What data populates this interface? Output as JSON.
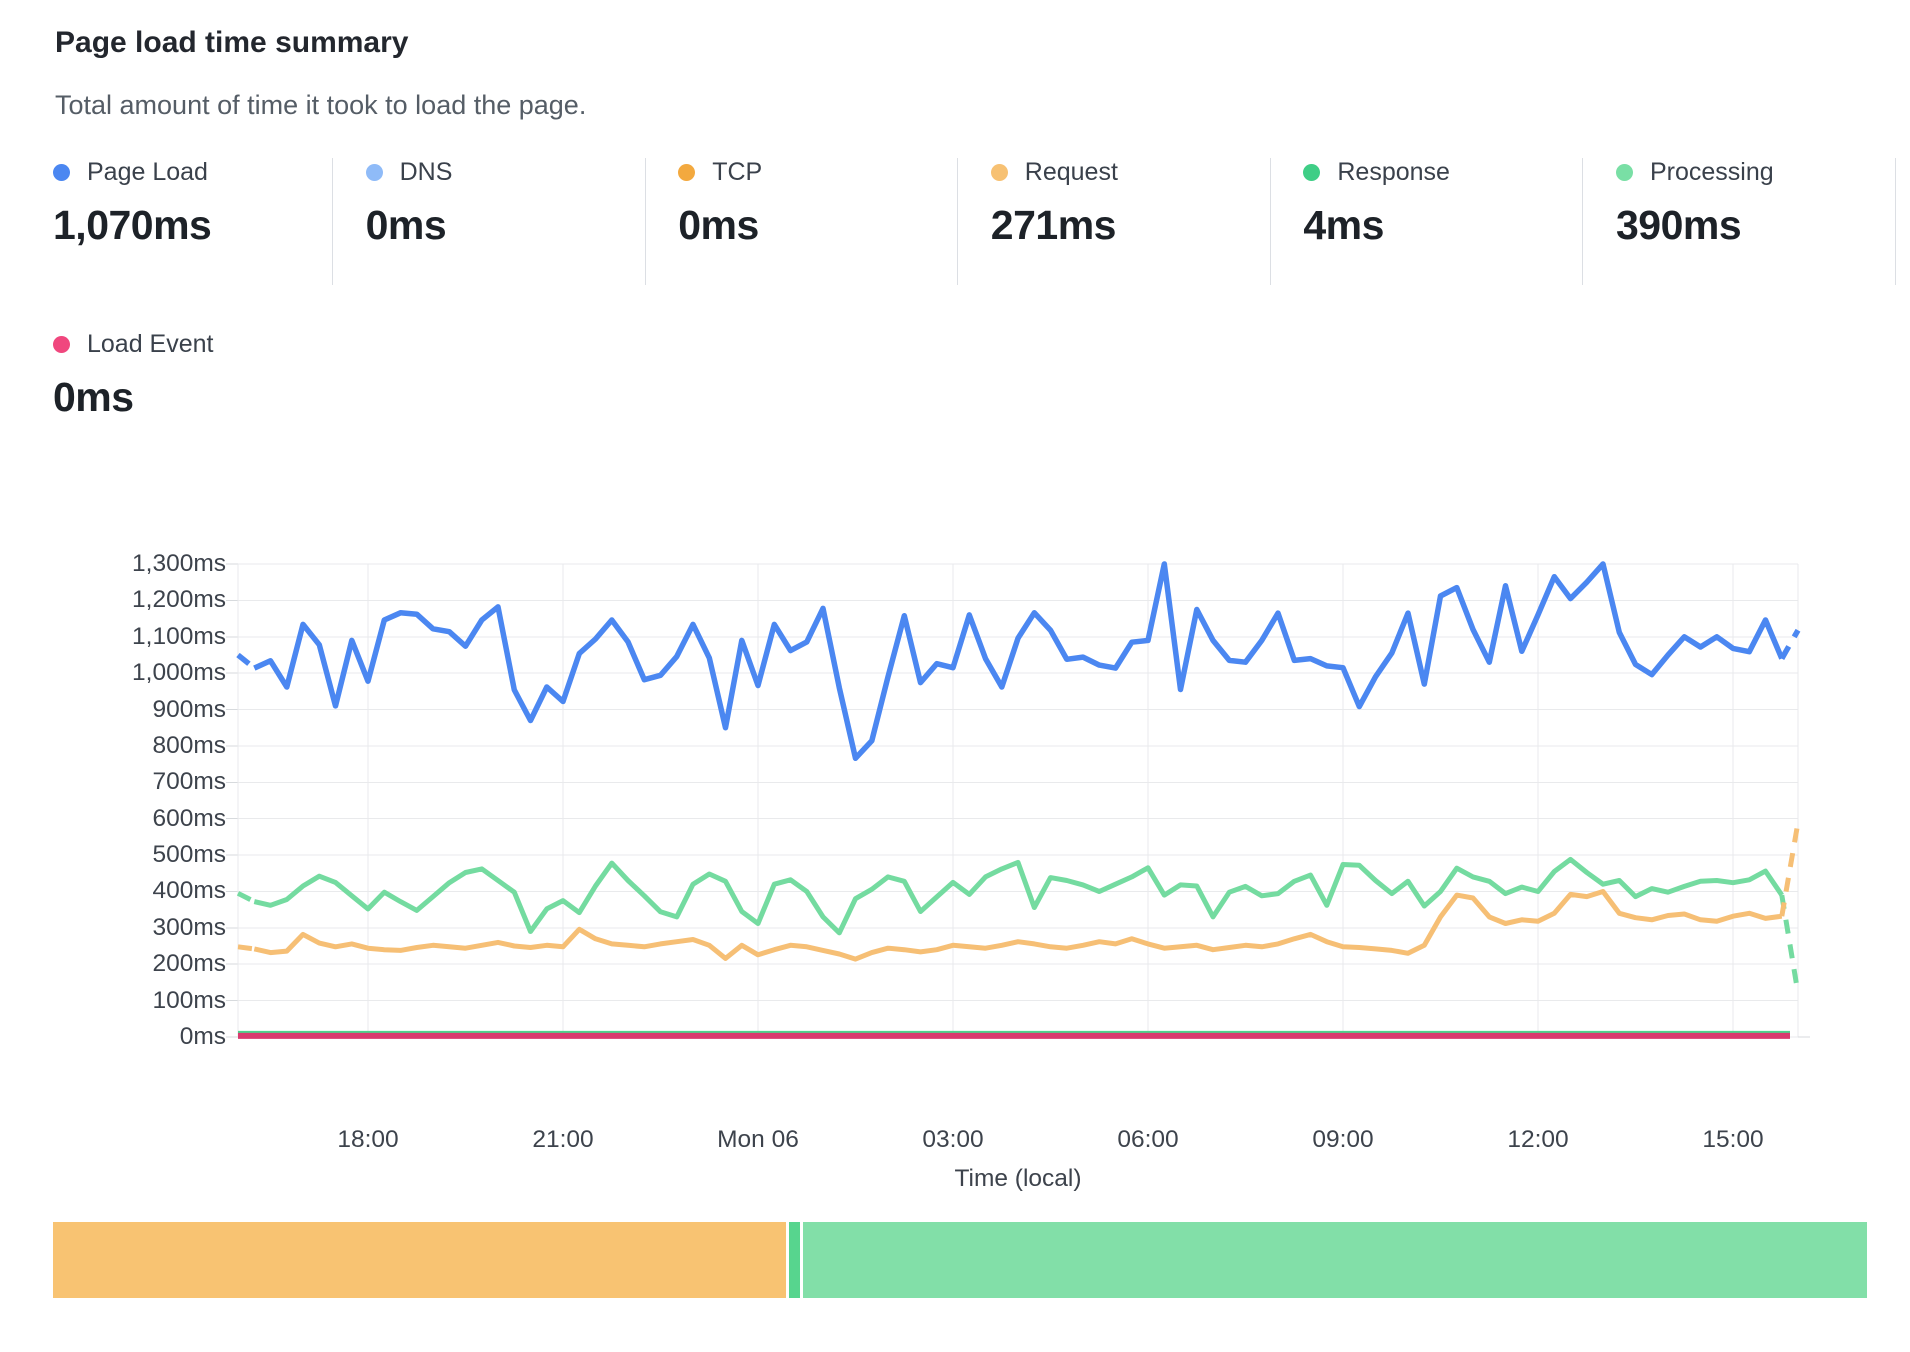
{
  "header": {
    "title": "Page load time summary",
    "subtitle": "Total amount of time it took to load the page."
  },
  "stats": [
    {
      "label": "Page Load",
      "value": "1,070ms",
      "color": "#4b87f1"
    },
    {
      "label": "DNS",
      "value": "0ms",
      "color": "#8fbbf8"
    },
    {
      "label": "TCP",
      "value": "0ms",
      "color": "#f3a93f"
    },
    {
      "label": "Request",
      "value": "271ms",
      "color": "#f7c173"
    },
    {
      "label": "Response",
      "value": "4ms",
      "color": "#3fce86"
    },
    {
      "label": "Processing",
      "value": "390ms",
      "color": "#79dfa5"
    }
  ],
  "stats_row2": {
    "label": "Load Event",
    "value": "0ms",
    "color": "#f0477e"
  },
  "chart_data": {
    "type": "line",
    "xlabel": "Time (local)",
    "ylim": [
      0,
      1300
    ],
    "grid": true,
    "y_tick_step_ms": 100,
    "y_tick_labels": [
      "1,300ms",
      "1,200ms",
      "1,100ms",
      "1,000ms",
      "900ms",
      "800ms",
      "700ms",
      "600ms",
      "500ms",
      "400ms",
      "300ms",
      "200ms",
      "100ms",
      "0ms"
    ],
    "x_tick_labels": [
      "18:00",
      "21:00",
      "Mon 06",
      "03:00",
      "06:00",
      "09:00",
      "12:00",
      "15:00"
    ],
    "x_tick_indices": [
      8,
      20,
      32,
      44,
      56,
      68,
      80,
      92
    ],
    "points_per_series": 97,
    "point_interval_minutes": 15,
    "x_start_time": "16:00",
    "series": [
      {
        "name": "Page Load",
        "color": "#4b87f1",
        "width": 5.5,
        "values": [
          1050,
          1014,
          1034,
          962,
          1134,
          1078,
          910,
          1090,
          978,
          1146,
          1166,
          1162,
          1122,
          1114,
          1074,
          1146,
          1182,
          954,
          870,
          962,
          922,
          1054,
          1094,
          1146,
          1086,
          982,
          994,
          1046,
          1134,
          1042,
          850,
          1090,
          966,
          1134,
          1062,
          1086,
          1178,
          960,
          766,
          814,
          990,
          1158,
          974,
          1026,
          1015,
          1160,
          1040,
          962,
          1096,
          1166,
          1118,
          1038,
          1044,
          1022,
          1014,
          1085,
          1090,
          1300,
          955,
          1175,
          1090,
          1035,
          1030,
          1090,
          1165,
          1035,
          1040,
          1020,
          1015,
          908,
          990,
          1055,
          1165,
          970,
          1212,
          1235,
          1120,
          1030,
          1240,
          1060,
          1160,
          1265,
          1205,
          1250,
          1300,
          1112,
          1024,
          996,
          1050,
          1100,
          1072,
          1100,
          1068,
          1059,
          1146,
          1040,
          1118
        ]
      },
      {
        "name": "Processing",
        "color": "#74dba0",
        "width": 5,
        "values": [
          395,
          372,
          362,
          378,
          415,
          442,
          425,
          388,
          352,
          398,
          372,
          348,
          386,
          424,
          452,
          462,
          430,
          398,
          290,
          352,
          375,
          342,
          415,
          478,
          430,
          388,
          344,
          330,
          420,
          448,
          428,
          345,
          312,
          420,
          432,
          400,
          330,
          286,
          380,
          406,
          440,
          428,
          345,
          385,
          425,
          392,
          440,
          462,
          480,
          356,
          438,
          430,
          418,
          400,
          420,
          440,
          465,
          390,
          418,
          415,
          330,
          398,
          414,
          388,
          394,
          428,
          445,
          362,
          474,
          472,
          430,
          394,
          428,
          360,
          400,
          464,
          440,
          428,
          394,
          412,
          400,
          455,
          488,
          452,
          420,
          430,
          386,
          408,
          398,
          414,
          428,
          430,
          424,
          432,
          456,
          390,
          120
        ]
      },
      {
        "name": "Request",
        "color": "#f6bf75",
        "width": 5,
        "values": [
          248,
          242,
          232,
          236,
          282,
          258,
          248,
          256,
          244,
          240,
          238,
          246,
          252,
          248,
          244,
          252,
          260,
          250,
          246,
          252,
          248,
          296,
          270,
          256,
          252,
          248,
          256,
          262,
          268,
          252,
          216,
          252,
          226,
          240,
          252,
          248,
          238,
          228,
          214,
          232,
          244,
          240,
          234,
          240,
          252,
          248,
          244,
          252,
          262,
          256,
          248,
          244,
          252,
          262,
          256,
          270,
          256,
          244,
          248,
          252,
          240,
          246,
          252,
          248,
          256,
          270,
          282,
          262,
          248,
          246,
          242,
          238,
          230,
          252,
          330,
          390,
          382,
          330,
          312,
          322,
          318,
          340,
          392,
          386,
          400,
          340,
          328,
          322,
          334,
          338,
          322,
          318,
          332,
          340,
          326,
          332,
          590
        ]
      },
      {
        "name": "Response",
        "color": "#4fd28c",
        "width": 5,
        "flat_value": 10
      },
      {
        "name": "Load Event",
        "color": "#d93a6e",
        "width": 6,
        "flat_value": 3
      }
    ]
  },
  "breakdown_bar": {
    "segments": [
      {
        "name": "Request",
        "color": "#f8c372",
        "fraction": 0.404
      },
      {
        "name": "Response",
        "color": "#57d58e",
        "fraction": 0.006
      },
      {
        "name": "Processing",
        "color": "#82dfa8",
        "fraction": 0.586
      }
    ]
  }
}
